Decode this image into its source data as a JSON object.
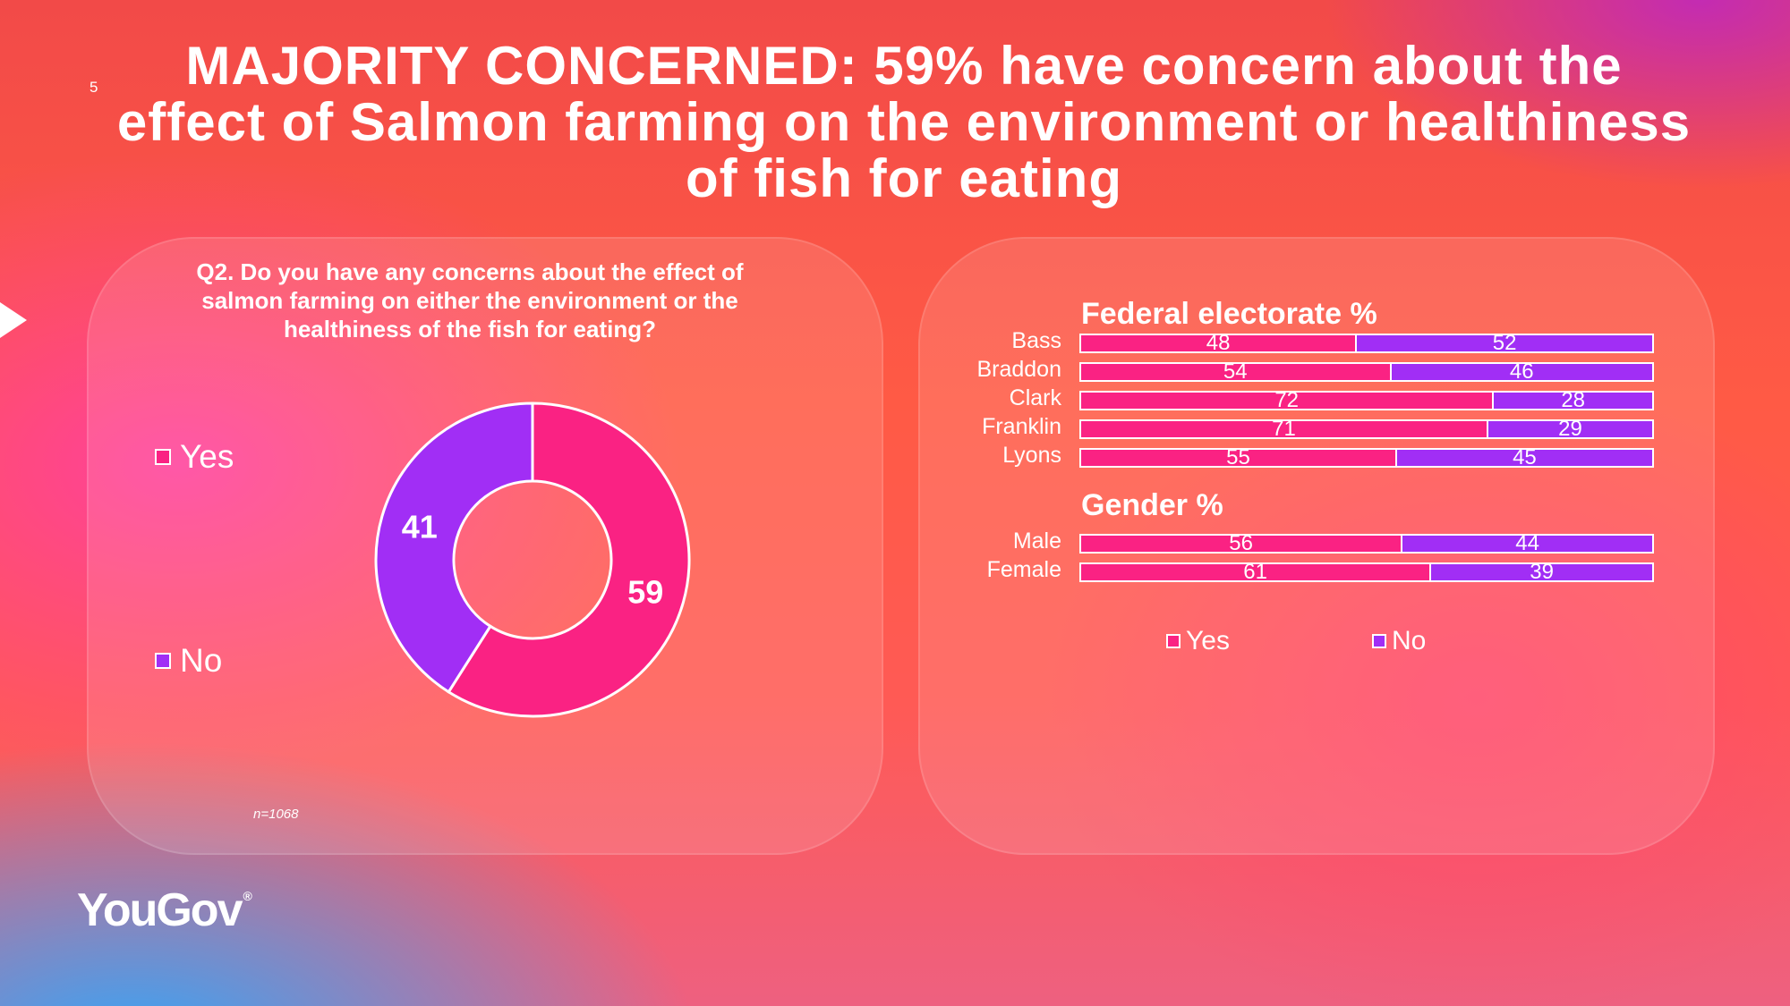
{
  "page_number": "5",
  "headline": "MAJORITY CONCERNED: 59% have concern about the effect of Salmon farming on the environment or healthiness of fish for eating",
  "colors": {
    "yes": "#fa2283",
    "no": "#a12ef5"
  },
  "logo": {
    "text": "YouGov",
    "mark": "®"
  },
  "chart_data": [
    {
      "type": "pie",
      "variant": "donut",
      "title": "Q2. Do you have any concerns about the effect of salmon farming on either the environment or the healthiness of the fish for eating?",
      "categories": [
        "Yes",
        "No"
      ],
      "values": [
        59,
        41
      ],
      "legend": [
        "Yes",
        "No"
      ],
      "legend_position": "left",
      "note": "n=1068"
    },
    {
      "type": "bar",
      "orientation": "horizontal",
      "stacked": true,
      "title": "Federal electorate %",
      "categories": [
        "Bass",
        "Braddon",
        "Clark",
        "Franklin",
        "Lyons"
      ],
      "series": [
        {
          "name": "Yes",
          "values": [
            48,
            54,
            72,
            71,
            55
          ]
        },
        {
          "name": "No",
          "values": [
            52,
            46,
            28,
            29,
            45
          ]
        }
      ],
      "xlim": [
        0,
        100
      ]
    },
    {
      "type": "bar",
      "orientation": "horizontal",
      "stacked": true,
      "title": "Gender %",
      "categories": [
        "Male",
        "Female"
      ],
      "series": [
        {
          "name": "Yes",
          "values": [
            56,
            61
          ]
        },
        {
          "name": "No",
          "values": [
            44,
            39
          ]
        }
      ],
      "xlim": [
        0,
        100
      ],
      "legend": [
        "Yes",
        "No"
      ],
      "legend_position": "bottom"
    }
  ]
}
